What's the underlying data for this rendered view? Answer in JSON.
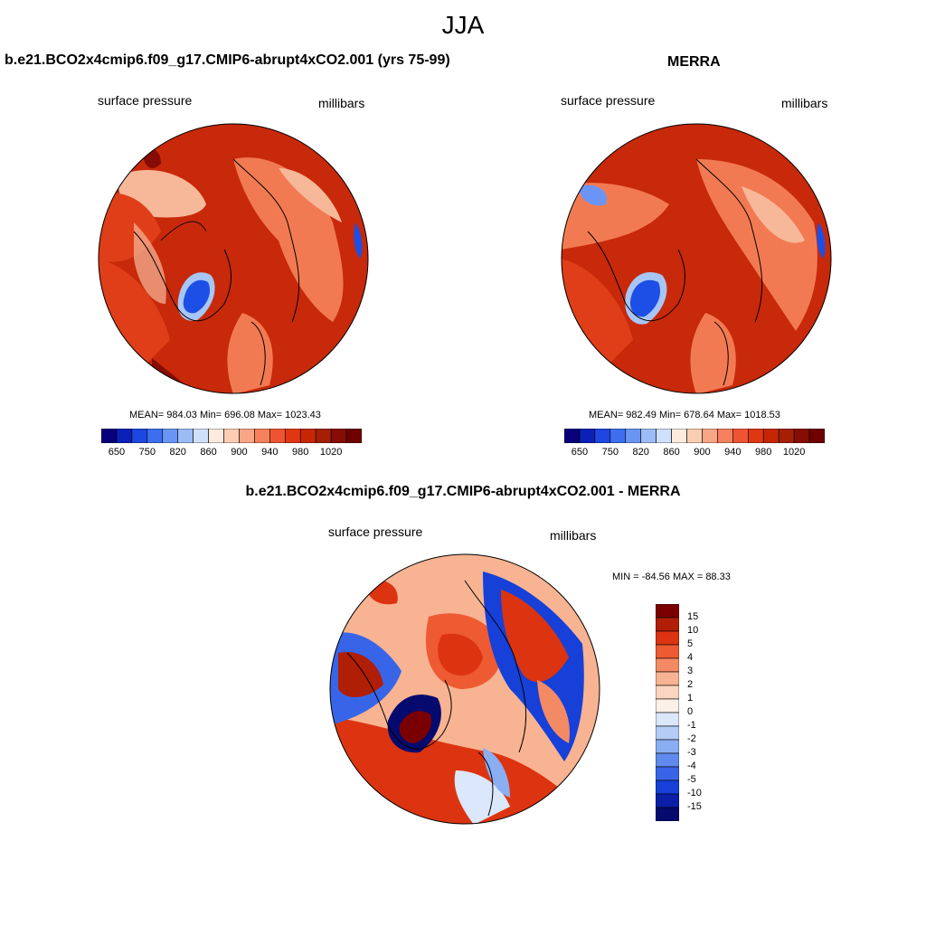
{
  "title": "JJA",
  "colors": {
    "bar_palette_17": [
      "#08007a",
      "#0b20b7",
      "#1e46e0",
      "#3d6ef0",
      "#6a95f4",
      "#9cbcf6",
      "#cfe1fa",
      "#fdebdf",
      "#fbcdb3",
      "#f8a685",
      "#f5805e",
      "#ee5432",
      "#df3712",
      "#c52705",
      "#a61f05",
      "#860c05",
      "#6e0000"
    ],
    "map_deep": "#c7290a",
    "map_mid": "#df3e18",
    "map_light": "#f27a52",
    "map_pale": "#f7b89a",
    "map_blue": "#1d4fe6",
    "map_lightblue": "#a8c6f5"
  },
  "panels": [
    {
      "title": "b.e21.BCO2x4cmip6.f09_g17.CMIP6-abrupt4xCO2.001 (yrs 75-99)",
      "left_label": "surface pressure",
      "right_label": "millibars",
      "stats": "MEAN= 984.03  Min= 696.08  Max= 1023.43",
      "colorbar_ticks": [
        "650",
        "750",
        "820",
        "860",
        "900",
        "940",
        "980",
        "1020"
      ]
    },
    {
      "title": "MERRA",
      "left_label": "surface pressure",
      "right_label": "millibars",
      "stats": "MEAN= 982.49  Min= 678.64  Max= 1018.53",
      "colorbar_ticks": [
        "650",
        "750",
        "820",
        "860",
        "900",
        "940",
        "980",
        "1020"
      ]
    }
  ],
  "diff_panel": {
    "title": "b.e21.BCO2x4cmip6.f09_g17.CMIP6-abrupt4xCO2.001 - MERRA",
    "left_label": "surface pressure",
    "right_label": "millibars",
    "stats": "MIN = -84.56 MAX =  88.33",
    "colorbar_ticks": [
      "15",
      "10",
      "5",
      "4",
      "3",
      "2",
      "1",
      "0",
      "-1",
      "-2",
      "-3",
      "-4",
      "-5",
      "-10",
      "-15"
    ],
    "colorbar_colors": [
      "#7a0000",
      "#b01e05",
      "#dc3410",
      "#ee5a32",
      "#f48a64",
      "#f8b392",
      "#fbd5bf",
      "#fdf0e6",
      "#dbe7fb",
      "#b4ccf6",
      "#8aaef2",
      "#5f8bee",
      "#3865e8",
      "#1640d8",
      "#0a1ea8",
      "#050a6e"
    ]
  }
}
